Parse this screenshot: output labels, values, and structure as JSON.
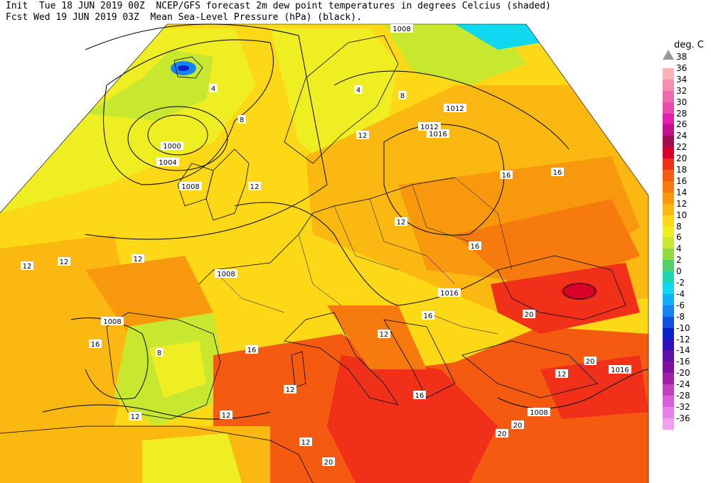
{
  "header": {
    "line1": "Init  Tue 18 JUN 2019 00Z  NCEP/GFS forecast 2m dew point temperatures in degrees Celcius (shaded)",
    "line2": "Fcst Wed 19 JUN 2019 03Z  Mean Sea-Level Pressure (hPa) (black)."
  },
  "colorbar": {
    "title": "deg. C",
    "items": [
      {
        "label": "38",
        "color": "#999999"
      },
      {
        "label": "36",
        "color": "#f7b3b8"
      },
      {
        "label": "34",
        "color": "#f58fb0"
      },
      {
        "label": "32",
        "color": "#f06ab0"
      },
      {
        "label": "30",
        "color": "#e84aae"
      },
      {
        "label": "28",
        "color": "#e020a8"
      },
      {
        "label": "26",
        "color": "#c0108c"
      },
      {
        "label": "24",
        "color": "#a00c50"
      },
      {
        "label": "22",
        "color": "#d80028"
      },
      {
        "label": "20",
        "color": "#f03018"
      },
      {
        "label": "18",
        "color": "#f45a10"
      },
      {
        "label": "16",
        "color": "#f67a0e"
      },
      {
        "label": "14",
        "color": "#f8980c"
      },
      {
        "label": "12",
        "color": "#fbb810"
      },
      {
        "label": "10",
        "color": "#fcd817"
      },
      {
        "label": "8",
        "color": "#eeee22"
      },
      {
        "label": "6",
        "color": "#c8e830"
      },
      {
        "label": "4",
        "color": "#90dc40"
      },
      {
        "label": "2",
        "color": "#50d068"
      },
      {
        "label": "0",
        "color": "#20d6b0"
      },
      {
        "label": "-2",
        "color": "#10d8f0"
      },
      {
        "label": "-4",
        "color": "#10b0f8"
      },
      {
        "label": "-6",
        "color": "#1484f0"
      },
      {
        "label": "-8",
        "color": "#1050e0"
      },
      {
        "label": "-10",
        "color": "#0a20c8"
      },
      {
        "label": "-12",
        "color": "#3010b8"
      },
      {
        "label": "-14",
        "color": "#6010a8"
      },
      {
        "label": "-16",
        "color": "#8010a0"
      },
      {
        "label": "-20",
        "color": "#a020a8"
      },
      {
        "label": "-24",
        "color": "#c040c0"
      },
      {
        "label": "-28",
        "color": "#d860d8"
      },
      {
        "label": "-32",
        "color": "#e880e8"
      },
      {
        "label": "-36",
        "color": "#f0a0f0"
      }
    ]
  },
  "isobars": [
    {
      "label": "1000"
    },
    {
      "label": "1004"
    },
    {
      "label": "1008"
    },
    {
      "label": "1008"
    },
    {
      "label": "1008"
    },
    {
      "label": "1012"
    },
    {
      "label": "1012"
    },
    {
      "label": "1016"
    },
    {
      "label": "1016"
    },
    {
      "label": "1016"
    },
    {
      "label": "1008"
    },
    {
      "label": "1008"
    }
  ],
  "dewpoint_labels": [
    {
      "label": "4"
    },
    {
      "label": "8"
    },
    {
      "label": "4"
    },
    {
      "label": "8"
    },
    {
      "label": "12"
    },
    {
      "label": "12"
    },
    {
      "label": "12"
    },
    {
      "label": "12"
    },
    {
      "label": "12"
    },
    {
      "label": "16"
    },
    {
      "label": "16"
    },
    {
      "label": "12"
    },
    {
      "label": "16"
    },
    {
      "label": "16"
    },
    {
      "label": "16"
    },
    {
      "label": "20"
    },
    {
      "label": "20"
    },
    {
      "label": "20"
    },
    {
      "label": "20"
    },
    {
      "label": "20"
    },
    {
      "label": "12"
    },
    {
      "label": "8"
    },
    {
      "label": "12"
    },
    {
      "label": "12"
    },
    {
      "label": "16"
    },
    {
      "label": "12"
    },
    {
      "label": "16"
    },
    {
      "label": "12"
    },
    {
      "label": "12"
    }
  ]
}
